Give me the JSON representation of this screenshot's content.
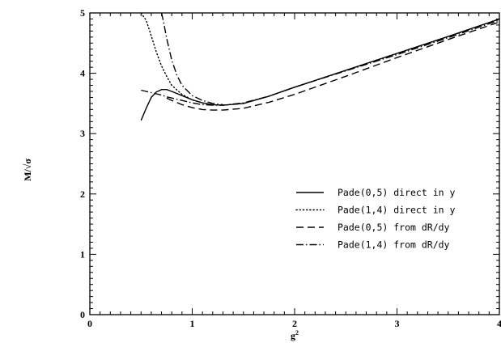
{
  "chart_data": {
    "type": "line",
    "title": "",
    "xlabel": "g",
    "xlabel_sup": "2",
    "ylabel": "M/√σ",
    "xlim": [
      0,
      4
    ],
    "ylim": [
      0,
      5
    ],
    "x_ticks": [
      "0",
      "1",
      "2",
      "3",
      "4"
    ],
    "y_ticks": [
      "0",
      "1",
      "2",
      "3",
      "4",
      "5"
    ],
    "grid": false,
    "legend_position": "lower-right",
    "series": [
      {
        "name": "Pade(0,5) direct in y",
        "style": "solid",
        "x": [
          0.5,
          0.55,
          0.6,
          0.65,
          0.7,
          0.75,
          0.8,
          0.9,
          1.0,
          1.1,
          1.2,
          1.3,
          1.5,
          1.75,
          2.0,
          2.5,
          3.0,
          3.5,
          4.0
        ],
        "y": [
          3.22,
          3.42,
          3.6,
          3.69,
          3.73,
          3.73,
          3.7,
          3.63,
          3.56,
          3.51,
          3.48,
          3.47,
          3.5,
          3.62,
          3.77,
          4.05,
          4.33,
          4.61,
          4.9
        ]
      },
      {
        "name": "Pade(1,4) direct in y",
        "style": "dotted",
        "x": [
          0.5,
          0.55,
          0.6,
          0.65,
          0.7,
          0.75,
          0.8,
          0.9,
          1.0,
          1.1,
          1.2,
          1.3,
          1.5,
          1.75,
          2.0,
          2.5,
          3.0,
          3.5,
          4.0
        ],
        "y": [
          5.0,
          4.88,
          4.62,
          4.35,
          4.12,
          3.95,
          3.8,
          3.65,
          3.56,
          3.51,
          3.48,
          3.47,
          3.5,
          3.62,
          3.77,
          4.05,
          4.33,
          4.61,
          4.9
        ]
      },
      {
        "name": "Pade(0,5) from dR/dy",
        "style": "dashed",
        "x": [
          0.75,
          0.8,
          0.9,
          1.0,
          1.1,
          1.2,
          1.3,
          1.5,
          1.75,
          2.0,
          2.5,
          3.0,
          3.5,
          4.0
        ],
        "y": [
          3.59,
          3.55,
          3.48,
          3.43,
          3.4,
          3.39,
          3.39,
          3.42,
          3.52,
          3.65,
          3.95,
          4.26,
          4.56,
          4.85
        ]
      },
      {
        "name": "Pade(1,4) from dR/dy",
        "style": "dashdot",
        "x": [
          0.5,
          0.55,
          0.6,
          0.65,
          0.7,
          0.75,
          0.8,
          0.9,
          1.0,
          1.1,
          1.2,
          1.3,
          1.5,
          1.75,
          2.0,
          2.5,
          3.0,
          3.5,
          4.0
        ],
        "y": [
          3.72,
          3.7,
          3.68,
          3.66,
          3.64,
          3.61,
          3.59,
          3.55,
          3.51,
          3.48,
          3.47,
          3.47,
          3.51,
          3.62,
          3.77,
          4.04,
          4.31,
          4.59,
          4.88
        ]
      },
      {
        "name": "",
        "style": "dashdot",
        "x": [
          0.7,
          0.72,
          0.75,
          0.8,
          0.85,
          0.9,
          1.0,
          1.1,
          1.2,
          1.3
        ],
        "y": [
          5.0,
          4.85,
          4.58,
          4.22,
          3.97,
          3.8,
          3.63,
          3.55,
          3.5,
          3.48
        ]
      }
    ]
  }
}
